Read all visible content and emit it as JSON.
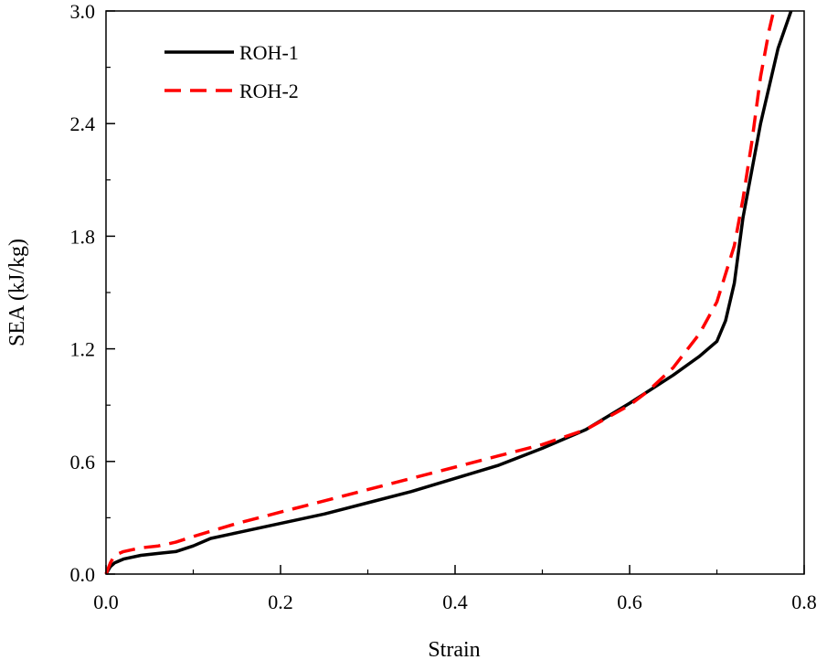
{
  "chart_data": {
    "type": "line",
    "title": "",
    "xlabel": "Strain",
    "ylabel": "SEA (kJ/kg)",
    "xlim": [
      0.0,
      0.8
    ],
    "ylim": [
      0.0,
      3.0
    ],
    "xticks": [
      0.0,
      0.2,
      0.4,
      0.6,
      0.8
    ],
    "xtick_labels": [
      "0.0",
      "0.2",
      "0.4",
      "0.6",
      "0.8"
    ],
    "yticks": [
      0.0,
      0.6,
      1.2,
      1.8,
      2.4,
      3.0
    ],
    "ytick_labels": [
      "0.0",
      "0.6",
      "1.2",
      "1.8",
      "2.4",
      "3.0"
    ],
    "grid": false,
    "legend_position": "top-left",
    "series": [
      {
        "name": "ROH-1",
        "color": "#000000",
        "style": "solid",
        "x": [
          0.0,
          0.005,
          0.01,
          0.02,
          0.04,
          0.06,
          0.08,
          0.1,
          0.12,
          0.15,
          0.2,
          0.25,
          0.3,
          0.35,
          0.4,
          0.45,
          0.5,
          0.55,
          0.6,
          0.65,
          0.68,
          0.7,
          0.71,
          0.72,
          0.73,
          0.75,
          0.77,
          0.785
        ],
        "y": [
          0.0,
          0.04,
          0.06,
          0.08,
          0.1,
          0.11,
          0.12,
          0.15,
          0.19,
          0.22,
          0.27,
          0.32,
          0.38,
          0.44,
          0.51,
          0.58,
          0.67,
          0.77,
          0.91,
          1.06,
          1.16,
          1.24,
          1.35,
          1.55,
          1.9,
          2.4,
          2.8,
          3.0
        ]
      },
      {
        "name": "ROH-2",
        "color": "#ff0000",
        "style": "dashed",
        "x": [
          0.0,
          0.005,
          0.01,
          0.02,
          0.04,
          0.06,
          0.08,
          0.1,
          0.15,
          0.2,
          0.25,
          0.3,
          0.35,
          0.4,
          0.45,
          0.5,
          0.55,
          0.6,
          0.62,
          0.65,
          0.68,
          0.7,
          0.72,
          0.73,
          0.74,
          0.75,
          0.76,
          0.765
        ],
        "y": [
          0.0,
          0.06,
          0.1,
          0.12,
          0.14,
          0.15,
          0.17,
          0.2,
          0.27,
          0.33,
          0.39,
          0.45,
          0.51,
          0.57,
          0.63,
          0.69,
          0.77,
          0.9,
          0.97,
          1.1,
          1.28,
          1.45,
          1.75,
          2.0,
          2.3,
          2.65,
          2.9,
          3.0
        ]
      }
    ]
  }
}
